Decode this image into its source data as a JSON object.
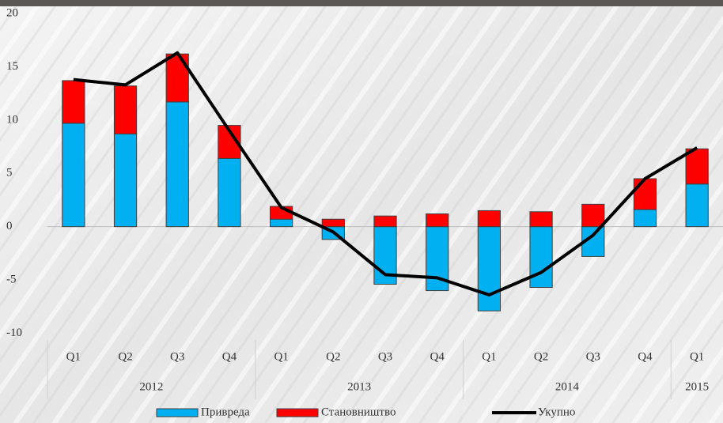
{
  "chart_data": {
    "type": "stacked-bar-line",
    "groups": [
      {
        "label": "2012",
        "categories": [
          "Q1",
          "Q2",
          "Q3",
          "Q4"
        ]
      },
      {
        "label": "2013",
        "categories": [
          "Q1",
          "Q2",
          "Q3",
          "Q4"
        ]
      },
      {
        "label": "2014",
        "categories": [
          "Q1",
          "Q2",
          "Q3",
          "Q4"
        ]
      },
      {
        "label": "2015",
        "categories": [
          "Q1"
        ]
      }
    ],
    "series": [
      {
        "name": "Привреда",
        "type": "bar",
        "color": "#00b0f0",
        "values": [
          9.7,
          8.7,
          11.7,
          6.4,
          0.7,
          -1.2,
          -5.4,
          -6.0,
          -7.9,
          -5.7,
          -2.8,
          1.6,
          4.0
        ]
      },
      {
        "name": "Становништво",
        "type": "bar",
        "color": "#ff0000",
        "values": [
          4.0,
          4.5,
          4.5,
          3.1,
          1.2,
          0.7,
          1.0,
          1.2,
          1.5,
          1.4,
          2.1,
          2.9,
          3.3
        ]
      },
      {
        "name": "Укупно",
        "type": "line",
        "color": "#000000",
        "values": [
          13.8,
          13.3,
          16.3,
          9.0,
          1.8,
          -0.5,
          -4.5,
          -4.8,
          -6.4,
          -4.3,
          -0.8,
          4.5,
          7.4
        ]
      }
    ],
    "ylim": [
      -10,
      20
    ],
    "yticks": [
      -10,
      -5,
      0,
      5,
      10,
      15,
      20
    ],
    "legend": "bottom"
  }
}
